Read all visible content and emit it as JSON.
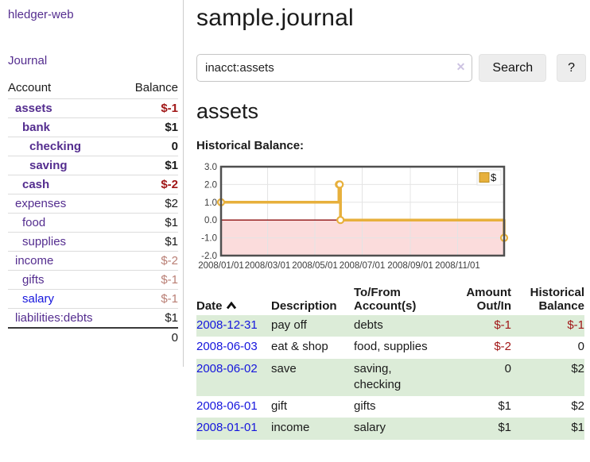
{
  "app": {
    "title": "hledger-web",
    "nav_journal": "Journal"
  },
  "sidebar": {
    "accounts_header": {
      "account": "Account",
      "balance": "Balance"
    },
    "accounts": [
      {
        "name": "assets",
        "balance": "$-1",
        "indent": 1,
        "row_class": "in-filter",
        "bal_class": "neg-strong"
      },
      {
        "name": "bank",
        "balance": "$1",
        "indent": 2,
        "row_class": "in-filter"
      },
      {
        "name": "checking",
        "balance": "0",
        "indent": 3,
        "row_class": "in-filter"
      },
      {
        "name": "saving",
        "balance": "$1",
        "indent": 3,
        "row_class": "in-filter"
      },
      {
        "name": "cash",
        "balance": "$-2",
        "indent": 2,
        "row_class": "in-filter",
        "bal_class": "neg-strong"
      },
      {
        "name": "expenses",
        "balance": "$2",
        "indent": 1
      },
      {
        "name": "food",
        "balance": "$1",
        "indent": 2
      },
      {
        "name": "supplies",
        "balance": "$1",
        "indent": 2
      },
      {
        "name": "income",
        "balance": "$-2",
        "indent": 1,
        "bal_class": "neg-soft"
      },
      {
        "name": "gifts",
        "balance": "$-1",
        "indent": 2,
        "bal_class": "neg-soft"
      },
      {
        "name": "salary",
        "balance": "$-1",
        "indent": 2,
        "link_class": "blue",
        "bal_class": "neg-soft"
      },
      {
        "name": "liabilities:debts",
        "balance": "$1",
        "indent": 1
      }
    ],
    "total": "0"
  },
  "header": {
    "title": "sample.journal"
  },
  "search": {
    "value": "inacct:assets",
    "clear_icon": "✕",
    "button_label": "Search",
    "help_label": "?"
  },
  "account_page": {
    "title": "assets",
    "chart_label": "Historical Balance:"
  },
  "chart_data": {
    "type": "line",
    "step": true,
    "title": "Historical Balance",
    "series": [
      {
        "name": "$",
        "color": "#e7b03c",
        "points": [
          [
            "2008-01-01",
            1
          ],
          [
            "2008-06-01",
            2
          ],
          [
            "2008-06-02",
            2
          ],
          [
            "2008-06-03",
            0
          ],
          [
            "2008-12-31",
            -1
          ]
        ]
      }
    ],
    "ylim": [
      -2,
      3
    ],
    "yticks": [
      3,
      2,
      1,
      0,
      -1,
      -2
    ],
    "xticks": [
      "2008/01/01",
      "2008/03/01",
      "2008/05/01",
      "2008/07/01",
      "2008/09/01",
      "2008/11/01"
    ],
    "xrange": [
      "2008-01-01",
      "2008-12-31"
    ],
    "negative_fill": "#fbdcdc",
    "zero_line_color": "#8f1010",
    "grid": true,
    "legend_label": "$",
    "legend_position": "top-right"
  },
  "register": {
    "columns": {
      "date": "Date",
      "description": "Description",
      "accounts": "To/From Account(s)",
      "amount": "Amount Out/In",
      "balance": "Historical Balance"
    },
    "rows": [
      {
        "date": "2008-12-31",
        "description": "pay off",
        "accounts": "debts",
        "amount": "$-1",
        "balance": "$-1",
        "amount_class": "neg",
        "balance_class": "neg"
      },
      {
        "date": "2008-06-03",
        "description": "eat & shop",
        "accounts": "food, supplies",
        "amount": "$-2",
        "balance": "0",
        "amount_class": "neg"
      },
      {
        "date": "2008-06-02",
        "description": "save",
        "accounts": "saving, checking",
        "amount": "0",
        "balance": "$2"
      },
      {
        "date": "2008-06-01",
        "description": "gift",
        "accounts": "gifts",
        "amount": "$1",
        "balance": "$2"
      },
      {
        "date": "2008-01-01",
        "description": "income",
        "accounts": "salary",
        "amount": "$1",
        "balance": "$1"
      }
    ]
  }
}
